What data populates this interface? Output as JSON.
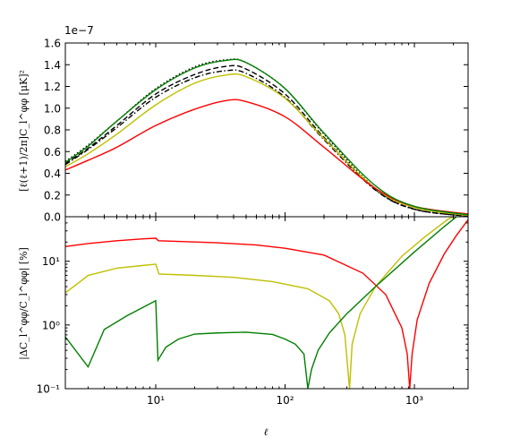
{
  "chart_data": [
    {
      "type": "line",
      "panel": "top",
      "xscale": "log",
      "xlim": [
        2,
        2600
      ],
      "ylim": [
        0,
        1.6e-07
      ],
      "offset_text": "1e−7",
      "ylabel": "[ℓ(ℓ+1)/2π]C_l^φφ [μK]²",
      "yticks": [
        "0.0",
        "0.2",
        "0.4",
        "0.6",
        "0.8",
        "1.0",
        "1.2",
        "1.4",
        "1.6"
      ],
      "grid": false,
      "series": [
        {
          "color": "#000000",
          "style": "dotted",
          "values": [
            [
              2,
              0.51
            ],
            [
              3,
              0.66
            ],
            [
              5,
              0.88
            ],
            [
              10,
              1.18
            ],
            [
              20,
              1.38
            ],
            [
              35,
              1.445
            ],
            [
              50,
              1.42
            ],
            [
              100,
              1.18
            ],
            [
              200,
              0.76
            ],
            [
              500,
              0.26
            ],
            [
              1000,
              0.07
            ],
            [
              2600,
              0.005
            ]
          ]
        },
        {
          "color": "#000000",
          "style": "dashed",
          "values": [
            [
              2,
              0.49
            ],
            [
              3,
              0.63
            ],
            [
              5,
              0.84
            ],
            [
              10,
              1.13
            ],
            [
              20,
              1.31
            ],
            [
              35,
              1.385
            ],
            [
              50,
              1.36
            ],
            [
              100,
              1.13
            ],
            [
              200,
              0.73
            ],
            [
              500,
              0.25
            ],
            [
              1000,
              0.07
            ],
            [
              2600,
              0.005
            ]
          ]
        },
        {
          "color": "#000000",
          "style": "dashdot",
          "values": [
            [
              2,
              0.48
            ],
            [
              3,
              0.62
            ],
            [
              5,
              0.82
            ],
            [
              10,
              1.1
            ],
            [
              20,
              1.28
            ],
            [
              35,
              1.345
            ],
            [
              50,
              1.32
            ],
            [
              100,
              1.1
            ],
            [
              200,
              0.71
            ],
            [
              500,
              0.245
            ],
            [
              1000,
              0.068
            ],
            [
              2600,
              0.005
            ]
          ]
        },
        {
          "color": "#bfbf00",
          "style": "solid",
          "values": [
            [
              2,
              0.46
            ],
            [
              3,
              0.58
            ],
            [
              5,
              0.76
            ],
            [
              10,
              1.03
            ],
            [
              20,
              1.23
            ],
            [
              35,
              1.305
            ],
            [
              50,
              1.29
            ],
            [
              100,
              1.09
            ],
            [
              200,
              0.72
            ],
            [
              500,
              0.26
            ],
            [
              1000,
              0.085
            ],
            [
              2600,
              0.012
            ]
          ]
        },
        {
          "color": "#ff0000",
          "style": "solid",
          "values": [
            [
              2,
              0.43
            ],
            [
              3,
              0.52
            ],
            [
              5,
              0.64
            ],
            [
              10,
              0.84
            ],
            [
              20,
              0.99
            ],
            [
              35,
              1.07
            ],
            [
              50,
              1.06
            ],
            [
              100,
              0.92
            ],
            [
              200,
              0.64
            ],
            [
              500,
              0.26
            ],
            [
              1000,
              0.095
            ],
            [
              2600,
              0.025
            ]
          ]
        },
        {
          "color": "#007f00",
          "style": "solid",
          "values": [
            [
              2,
              0.5
            ],
            [
              3,
              0.65
            ],
            [
              5,
              0.88
            ],
            [
              10,
              1.17
            ],
            [
              20,
              1.37
            ],
            [
              35,
              1.44
            ],
            [
              50,
              1.42
            ],
            [
              100,
              1.18
            ],
            [
              200,
              0.77
            ],
            [
              500,
              0.285
            ],
            [
              1000,
              0.095
            ],
            [
              2600,
              0.018
            ]
          ]
        }
      ]
    },
    {
      "type": "line",
      "panel": "bottom",
      "xscale": "log",
      "yscale": "log",
      "xlim": [
        2,
        2600
      ],
      "ylim": [
        0.1,
        50
      ],
      "xlabel": "ℓ",
      "ylabel": "|ΔC_l^φφ/C_l^φφ| [%]",
      "xticks": [
        {
          "value": 10,
          "label": "10¹"
        },
        {
          "value": 100,
          "label": "10²"
        },
        {
          "value": 1000,
          "label": "10³"
        }
      ],
      "yticks": [
        {
          "value": 0.1,
          "label": "10⁻¹"
        },
        {
          "value": 1,
          "label": "10⁰"
        },
        {
          "value": 10,
          "label": "10¹"
        }
      ],
      "grid": false,
      "series": [
        {
          "color": "#ff0000",
          "values": [
            [
              2,
              17
            ],
            [
              3,
              19
            ],
            [
              5,
              21
            ],
            [
              8,
              22.5
            ],
            [
              10,
              23
            ],
            [
              10.5,
              21
            ],
            [
              15,
              20.5
            ],
            [
              30,
              19.5
            ],
            [
              60,
              18
            ],
            [
              100,
              16
            ],
            [
              200,
              12.5
            ],
            [
              400,
              6.5
            ],
            [
              600,
              3
            ],
            [
              800,
              0.9
            ],
            [
              880,
              0.35
            ],
            [
              920,
              0.1
            ],
            [
              960,
              0.35
            ],
            [
              1050,
              1.2
            ],
            [
              1300,
              4.5
            ],
            [
              1700,
              13
            ],
            [
              2100,
              25
            ],
            [
              2600,
              45
            ]
          ]
        },
        {
          "color": "#bfbf00",
          "values": [
            [
              2,
              3.2
            ],
            [
              2.5,
              4.5
            ],
            [
              3,
              6
            ],
            [
              5,
              7.8
            ],
            [
              8,
              8.6
            ],
            [
              10,
              9
            ],
            [
              10.6,
              6.3
            ],
            [
              20,
              6
            ],
            [
              40,
              5.6
            ],
            [
              80,
              4.8
            ],
            [
              150,
              3.7
            ],
            [
              220,
              2.4
            ],
            [
              260,
              1.5
            ],
            [
              290,
              0.7
            ],
            [
              315,
              0.1
            ],
            [
              330,
              0.5
            ],
            [
              380,
              1.5
            ],
            [
              500,
              4
            ],
            [
              800,
              12
            ],
            [
              1200,
              24
            ],
            [
              1800,
              45
            ],
            [
              2600,
              65
            ]
          ]
        },
        {
          "color": "#007f00",
          "values": [
            [
              2,
              0.65
            ],
            [
              3,
              0.22
            ],
            [
              4,
              0.85
            ],
            [
              6,
              1.4
            ],
            [
              10,
              2.4
            ],
            [
              10.4,
              0.28
            ],
            [
              12,
              0.45
            ],
            [
              15,
              0.6
            ],
            [
              20,
              0.72
            ],
            [
              30,
              0.75
            ],
            [
              50,
              0.77
            ],
            [
              80,
              0.71
            ],
            [
              100,
              0.6
            ],
            [
              120,
              0.5
            ],
            [
              140,
              0.35
            ],
            [
              150,
              0.1
            ],
            [
              160,
              0.2
            ],
            [
              180,
              0.4
            ],
            [
              220,
              0.75
            ],
            [
              300,
              1.5
            ],
            [
              500,
              4
            ],
            [
              1000,
              14
            ],
            [
              1700,
              35
            ],
            [
              2600,
              70
            ]
          ]
        }
      ]
    }
  ]
}
